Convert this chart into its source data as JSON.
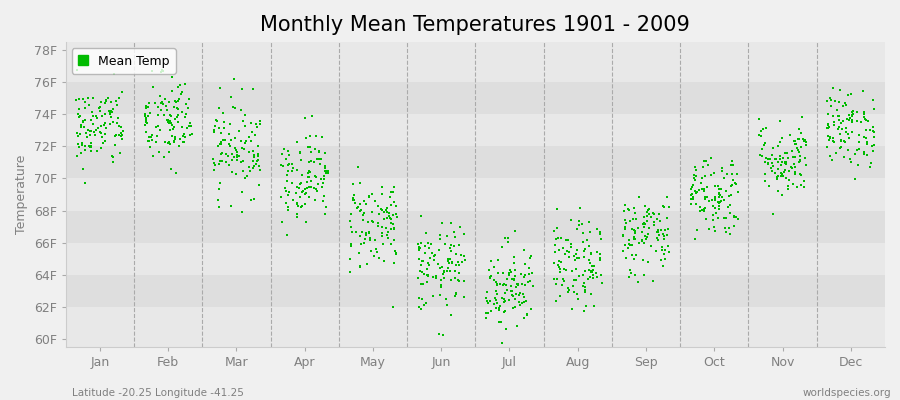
{
  "title": "Monthly Mean Temperatures 1901 - 2009",
  "ylabel": "Temperature",
  "xlabel_labels": [
    "Jan",
    "Feb",
    "Mar",
    "Apr",
    "May",
    "Jun",
    "Jul",
    "Aug",
    "Sep",
    "Oct",
    "Nov",
    "Dec"
  ],
  "ytick_labels": [
    "60F",
    "62F",
    "64F",
    "66F",
    "68F",
    "70F",
    "72F",
    "74F",
    "76F",
    "78F"
  ],
  "ytick_values": [
    60,
    62,
    64,
    66,
    68,
    70,
    72,
    74,
    76,
    78
  ],
  "ylim": [
    59.5,
    78.5
  ],
  "dot_color": "#00bb00",
  "bg_color": "#f0f0f0",
  "band_colors": [
    "#e8e8e8",
    "#dedede"
  ],
  "legend_label": "Mean Temp",
  "footnote_left": "Latitude -20.25 Longitude -41.25",
  "footnote_right": "worldspecies.org",
  "title_fontsize": 15,
  "axis_fontsize": 9,
  "legend_fontsize": 9,
  "monthly_means": [
    73.2,
    73.5,
    72.0,
    70.2,
    67.2,
    64.3,
    63.3,
    64.5,
    66.5,
    69.0,
    71.2,
    73.1
  ],
  "monthly_stds": [
    1.3,
    1.5,
    1.5,
    1.4,
    1.5,
    1.4,
    1.4,
    1.4,
    1.3,
    1.3,
    1.2,
    1.2
  ],
  "n_years": 109,
  "seed": 42,
  "marker_size": 4
}
